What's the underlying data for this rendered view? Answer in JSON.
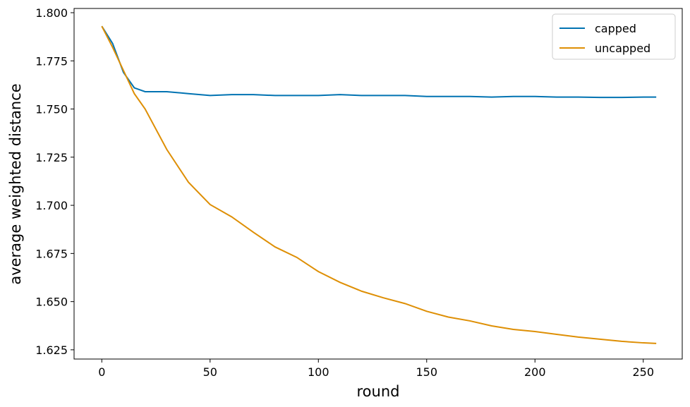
{
  "chart_data": {
    "type": "line",
    "x_label": "round",
    "y_label": "average weighted distance",
    "x": [
      0,
      5,
      10,
      15,
      20,
      30,
      40,
      50,
      60,
      70,
      80,
      90,
      100,
      110,
      120,
      130,
      140,
      150,
      160,
      170,
      180,
      190,
      200,
      210,
      220,
      230,
      240,
      250,
      256
    ],
    "series": [
      {
        "name": "capped",
        "color": "#0173b2",
        "values": [
          1.793,
          1.784,
          1.769,
          1.761,
          1.759,
          1.759,
          1.758,
          1.757,
          1.7575,
          1.7575,
          1.757,
          1.757,
          1.757,
          1.7575,
          1.757,
          1.757,
          1.757,
          1.7565,
          1.7565,
          1.7565,
          1.7562,
          1.7565,
          1.7565,
          1.7562,
          1.7562,
          1.756,
          1.756,
          1.7562,
          1.7562
        ]
      },
      {
        "name": "uncapped",
        "color": "#de8f05",
        "values": [
          1.793,
          1.782,
          1.77,
          1.758,
          1.75,
          1.729,
          1.712,
          1.7004,
          1.694,
          1.686,
          1.6784,
          1.673,
          1.6656,
          1.66,
          1.6554,
          1.652,
          1.649,
          1.645,
          1.642,
          1.64,
          1.6374,
          1.6356,
          1.6345,
          1.633,
          1.6316,
          1.6305,
          1.6294,
          1.6286,
          1.6283
        ]
      }
    ],
    "xlim": [
      -12.8,
      268
    ],
    "ylim": [
      1.6202,
      1.8022
    ],
    "xticks": [
      0,
      50,
      100,
      150,
      200,
      250
    ],
    "yticks": [
      1.625,
      {
        "value": 1.65,
        "label": "1.650"
      },
      1.675,
      {
        "value": 1.7,
        "label": "1.700"
      },
      1.725,
      {
        "value": 1.75,
        "label": "1.750"
      },
      1.775,
      {
        "value": 1.8,
        "label": "1.800"
      }
    ],
    "legend": "upper right"
  }
}
